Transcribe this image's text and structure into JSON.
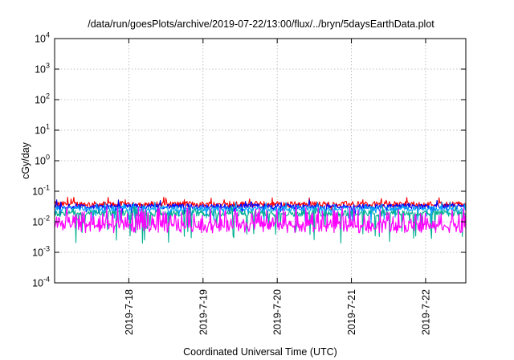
{
  "chart_data": {
    "type": "line",
    "title": "/data/run/goesPlots/archive/2019-07-22/13:00/flux/../bryn/5daysEarthData.plot",
    "xlabel": "Coordinated Universal Time (UTC)",
    "ylabel": "cGy/day",
    "yscale": "log",
    "ylim": [
      0.0001,
      10000
    ],
    "y_ticks": [
      {
        "base": "10",
        "exp": "-4"
      },
      {
        "base": "10",
        "exp": "-3"
      },
      {
        "base": "10",
        "exp": "-2"
      },
      {
        "base": "10",
        "exp": "-1"
      },
      {
        "base": "10",
        "exp": "0"
      },
      {
        "base": "10",
        "exp": "1"
      },
      {
        "base": "10",
        "exp": "2"
      },
      {
        "base": "10",
        "exp": "3"
      },
      {
        "base": "10",
        "exp": "4"
      }
    ],
    "xlim": [
      "2019-07-17T00:00",
      "2019-07-22T13:00"
    ],
    "x_ticks": [
      "2019-7-18",
      "2019-7-19",
      "2019-7-20",
      "2019-7-21",
      "2019-7-22"
    ],
    "grid": true,
    "legend": "none",
    "series": [
      {
        "color": "#ff0000",
        "base": 0.038,
        "spread": 0.18,
        "dip_factor": 0.92
      },
      {
        "color": "#0000ff",
        "base": 0.032,
        "spread": 0.16,
        "dip_factor": 0.85
      },
      {
        "color": "#00a0ff",
        "base": 0.027,
        "spread": 0.16,
        "dip_factor": 0.78
      },
      {
        "color": "#00b090",
        "base": 0.019,
        "spread": 0.2,
        "dip_factor": 0.55
      },
      {
        "color": "#ff00ff",
        "base": 0.0065,
        "spread": 0.35,
        "dip_factor": 1.0,
        "peak": 0.03
      }
    ]
  }
}
